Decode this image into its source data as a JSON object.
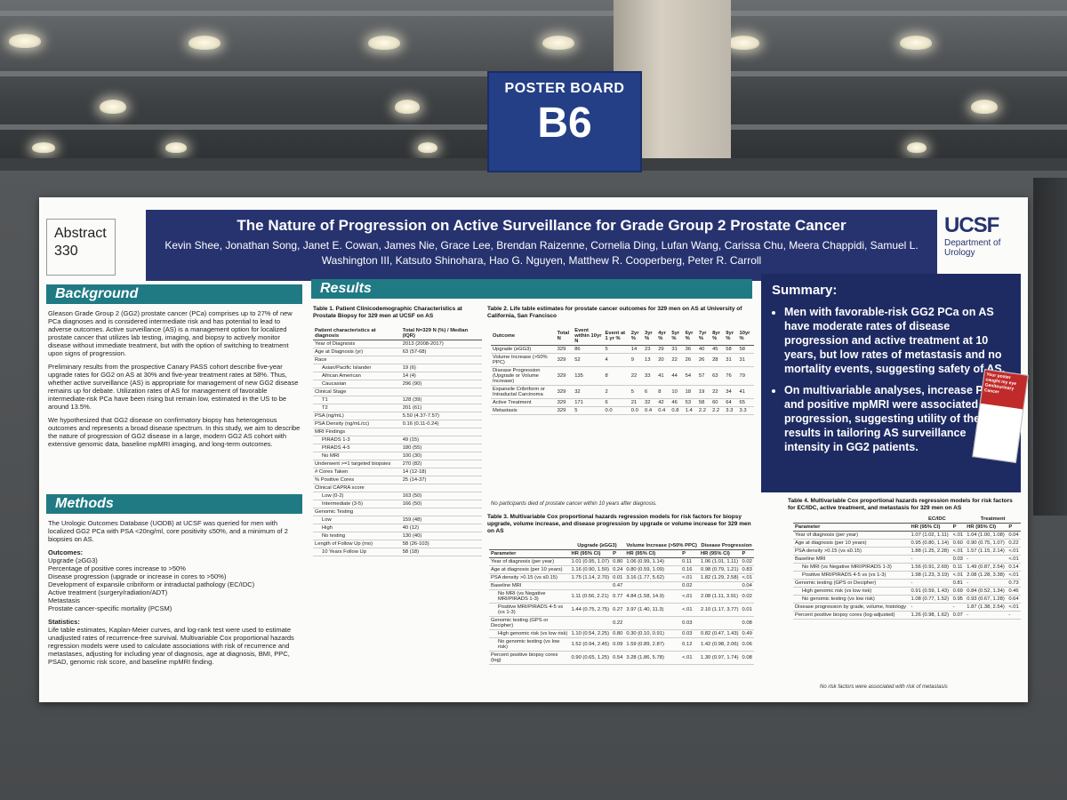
{
  "sign": {
    "line1": "POSTER BOARD",
    "line2": "B6"
  },
  "abstract": {
    "label": "Abstract",
    "number": "330"
  },
  "title": "The Nature of Progression on Active Surveillance for Grade Group 2 Prostate Cancer",
  "authors": "Kevin Shee, Jonathan Song, Janet E. Cowan, James Nie, Grace Lee, Brendan Raizenne, Cornelia Ding, Lufan Wang, Carissa Chu, Meera Chappidi, Samuel L. Washington III, Katsuto Shinohara, Hao G. Nguyen, Matthew R. Cooperberg, Peter R. Carroll",
  "logo": {
    "name": "UCSF",
    "dept": "Department of Urology"
  },
  "background": {
    "heading": "Background",
    "p1": "Gleason Grade Group 2 (GG2) prostate cancer (PCa) comprises up to 27% of new PCa diagnoses and is considered intermediate risk and has potential to lead to adverse outcomes. Active surveillance (AS) is a management option for localized prostate cancer that utilizes lab testing, imaging, and biopsy to actively monitor disease without immediate treatment, but with the option of switching to treatment upon signs of progression.",
    "p2": "Preliminary results from the prospective Canary PASS cohort describe five-year upgrade rates for GG2 on AS at 30% and five-year treatment rates at 58%. Thus, whether active surveillance (AS) is appropriate for management of new GG2 disease remains up for debate. Utilization rates of AS for management of favorable intermediate-risk PCa have been rising but remain low, estimated in the US to be around 13.5%.",
    "p3": "We hypothesized that GG2 disease on confirmatory biopsy has heterogenous outcomes and represents a broad disease spectrum. In this study, we aim to describe the nature of progression of GG2 disease in a large, modern GG2 AS cohort with extensive genomic data, baseline mpMRI imaging, and long-term outcomes."
  },
  "methods": {
    "heading": "Methods",
    "p1": "The Urologic Outcomes Database (UODB) at UCSF was queried for men with localized GG2 PCa with PSA <20ng/ml, core positivity ≤50%, and a minimum of 2 biopsies on AS.",
    "outcomes_label": "Outcomes:",
    "outcomes": [
      "Upgrade (≥GG3)",
      "Percentage of positive cores increase to >50%",
      "Disease progression (upgrade or increase in cores to >50%)",
      "Development of expansile cribriform or intraductal pathology (EC/IDC)",
      "Active treatment (surgery/radiation/ADT)",
      "Metastasis",
      "Prostate cancer-specific mortality (PCSM)"
    ],
    "stats_label": "Statistics:",
    "stats": "Life table estimates, Kaplan-Meier curves, and log-rank test were used to estimate unadjusted rates of recurrence-free survival. Multivariable Cox proportional hazards regression models were used to calculate associations with risk of recurrence and metastases, adjusting for including year of diagnosis, age at diagnosis, BMI, PPC, PSAD, genomic risk score, and baseline mpMRI finding."
  },
  "results": {
    "heading": "Results"
  },
  "table1": {
    "title": "Table 1. Patient Clinicodemographic Characteristics at Prostate Biopsy for 329 men at UCSF on AS",
    "head": [
      "Patient characteristics at diagnosis",
      "Total N=329 N (%) / Median (IQR)"
    ],
    "rows": [
      [
        "Year of Diagnosis",
        "2013 (2008-2017)"
      ],
      [
        "Age at Diagnosis (yr)",
        "63 (57-68)"
      ],
      [
        "Race",
        ""
      ],
      [
        "Asian/Pacific Islander",
        "19 (6)"
      ],
      [
        "African American",
        "14 (4)"
      ],
      [
        "Caucasian",
        "296 (90)"
      ],
      [
        "Clinical Stage",
        ""
      ],
      [
        "T1",
        "128 (39)"
      ],
      [
        "T2",
        "201 (61)"
      ],
      [
        "PSA (ng/mL)",
        "5.50 (4.37-7.57)"
      ],
      [
        "PSA Density (ng/mL/cc)",
        "0.16 (0.11-0.24)"
      ],
      [
        "MRI Findings",
        ""
      ],
      [
        "PIRADS 1-3",
        "49 (15)"
      ],
      [
        "PIRADS 4-5",
        "180 (55)"
      ],
      [
        "No MRI",
        "100 (30)"
      ],
      [
        "Underwent >=1 targeted biopsies",
        "270 (82)"
      ],
      [
        "# Cores Taken",
        "14 (12-18)"
      ],
      [
        "% Positive Cores",
        "25 (14-37)"
      ],
      [
        "Clinical CAPRA score",
        ""
      ],
      [
        "Low (0-2)",
        "163 (50)"
      ],
      [
        "Intermediate (3-5)",
        "166 (50)"
      ],
      [
        "Genomic Testing",
        ""
      ],
      [
        "Low",
        "159 (48)"
      ],
      [
        "High",
        "40 (12)"
      ],
      [
        "No testing",
        "130 (40)"
      ],
      [
        "Length of Follow Up (mo)",
        "58 (26-103)"
      ],
      [
        "10 Years Follow Up",
        "58 (18)"
      ]
    ]
  },
  "table2": {
    "title": "Table 2. Life table estimates for prostate cancer outcomes for 329 men on AS at University of California, San Francisco",
    "head": [
      "Outcome",
      "Total N",
      "Event within 10yr N",
      "Event at 1 yr %",
      "2yr %",
      "3yr %",
      "4yr %",
      "5yr %",
      "6yr %",
      "7yr %",
      "8yr %",
      "9yr %",
      "10yr %"
    ],
    "rows": [
      [
        "Upgrade (≥GG3)",
        "329",
        "86",
        "5",
        "14",
        "23",
        "29",
        "31",
        "36",
        "40",
        "45",
        "58",
        "58"
      ],
      [
        "Volume Increase (>50% PPC)",
        "329",
        "52",
        "4",
        "9",
        "13",
        "20",
        "22",
        "26",
        "26",
        "28",
        "31",
        "31"
      ],
      [
        "Disease Progression (Upgrade or Volume Increase)",
        "329",
        "135",
        "8",
        "22",
        "33",
        "41",
        "44",
        "54",
        "57",
        "63",
        "76",
        "79"
      ],
      [
        "Expansile Cribriform or Intraductal Carcinoma",
        "329",
        "32",
        "2",
        "5",
        "6",
        "8",
        "10",
        "18",
        "19",
        "22",
        "34",
        "41"
      ],
      [
        "Active Treatment",
        "329",
        "171",
        "6",
        "21",
        "32",
        "42",
        "46",
        "53",
        "58",
        "60",
        "64",
        "65"
      ],
      [
        "Metastasis",
        "329",
        "5",
        "0.0",
        "0.0",
        "0.4",
        "0.4",
        "0.8",
        "1.4",
        "2.2",
        "2.2",
        "3.3",
        "3.3"
      ]
    ],
    "note": "No participants died of prostate cancer within 10 years after diagnosis."
  },
  "table3": {
    "title": "Table 3. Multivariable Cox proportional hazards regression models for risk factors for biopsy upgrade, volume increase, and disease progression by upgrade or volume increase for 329 men on AS",
    "groups": [
      "Upgrade (≥GG3)",
      "Volume Increase (>50% PPC)",
      "Disease Progression"
    ],
    "head": [
      "Parameter",
      "HR (95% CI)",
      "P",
      "HR (95% CI)",
      "P",
      "HR (95% CI)",
      "P"
    ],
    "rows": [
      [
        "Year of diagnosis (per year)",
        "1.01 (0.95, 1.07)",
        "0.80",
        "1.06 (0.99, 1.14)",
        "0.11",
        "1.06 (1.01, 1.11)",
        "0.02"
      ],
      [
        "Age at diagnosis (per 10 years)",
        "1.16 (0.90, 1.50)",
        "0.24",
        "0.80 (0.59, 1.09)",
        "0.16",
        "0.98 (0.79, 1.21)",
        "0.83"
      ],
      [
        "PSA density >0.15 (vs ≤0.15)",
        "1.75 (1.14, 2.70)",
        "0.01",
        "3.16 (1.77, 5.62)",
        "<.01",
        "1.82 (1.29, 2.58)",
        "<.01"
      ],
      [
        "Baseline MRI",
        "",
        "0.47",
        "",
        "0.02",
        "",
        "0.04"
      ],
      [
        "No MRI (vs Negative MRI/PIRADS 1-3)",
        "1.11 (0.56, 2.21)",
        "0.77",
        "4.84 (1.58, 14.9)",
        "<.01",
        "2.08 (1.11, 3.91)",
        "0.02"
      ],
      [
        "Positive MRI/PIRADS 4-5 vs (vs 1-3)",
        "1.44 (0.75, 2.75)",
        "0.27",
        "3.97 (1.40, 11.3)",
        "<.01",
        "2.10 (1.17, 3.77)",
        "0.01"
      ],
      [
        "Genomic testing (GPS or Decipher)",
        "",
        "0.22",
        "",
        "0.03",
        "",
        "0.08"
      ],
      [
        "High genomic risk (vs low risk)",
        "1.10 (0.54, 2.25)",
        "0.80",
        "0.30 (0.10, 0.91)",
        "0.03",
        "0.82 (0.47, 1.43)",
        "0.49"
      ],
      [
        "No genomic testing (vs low risk)",
        "1.52 (0.94, 2.45)",
        "0.09",
        "1.59 (0.89, 2.87)",
        "0.12",
        "1.42 (0.98, 2.06)",
        "0.06"
      ],
      [
        "Percent positive biopsy cores (log)",
        "0.90 (0.65, 1.25)",
        "0.54",
        "3.28 (1.86, 5.78)",
        "<.01",
        "1.30 (0.97, 1.74)",
        "0.08"
      ]
    ]
  },
  "table4": {
    "title": "Table 4. Multivariable Cox proportional hazards regression models for risk factors for EC/IDC, active treatment, and metastasis for 329 men on AS",
    "groups": [
      "EC/IDC",
      "Treatment"
    ],
    "head": [
      "Parameter",
      "HR (95% CI)",
      "P",
      "HR (95% CI)",
      "P"
    ],
    "rows": [
      [
        "Year of diagnosis (per year)",
        "1.07 (1.02, 1.11)",
        "<.01",
        "1.04 (1.00, 1.08)",
        "0.04"
      ],
      [
        "Age at diagnosis (per 10 years)",
        "0.95 (0.80, 1.14)",
        "0.60",
        "0.90 (0.75, 1.07)",
        "0.22"
      ],
      [
        "PSA density >0.15 (vs ≤0.15)",
        "1.88 (1.25, 2.28)",
        "<.01",
        "1.57 (1.15, 2.14)",
        "<.01"
      ],
      [
        "Baseline MRI",
        "-",
        "0.03",
        "-",
        "<.01"
      ],
      [
        "No MRI (vs Negative MRI/PIRADS 1-3)",
        "1.56 (0.91, 2.69)",
        "0.11",
        "1.49 (0.87, 2.54)",
        "0.14"
      ],
      [
        "Positive MRI/PIRADS 4-5 vs (vs 1-3)",
        "1.98 (1.23, 3.19)",
        "<.01",
        "2.08 (1.28, 3.38)",
        "<.01"
      ],
      [
        "Genomic testing (GPS or Decipher)",
        "-",
        "0.81",
        "-",
        "0.73"
      ],
      [
        "High genomic risk (vs low risk)",
        "0.91 (0.59, 1.43)",
        "0.69",
        "0.84 (0.52, 1.34)",
        "0.46"
      ],
      [
        "No genomic testing (vs low risk)",
        "1.08 (0.77, 1.52)",
        "0.95",
        "0.93 (0.67, 1.28)",
        "0.64"
      ],
      [
        "Disease progression by grade, volume, histology",
        "-",
        "-",
        "1.87 (1.38, 2.54)",
        "<.01"
      ],
      [
        "Percent positive biopsy cores (log-adjusted)",
        "1.26 (0.98, 1.62)",
        "0.07",
        "-",
        "-"
      ]
    ],
    "note": "No risk factors were associated with risk of metastasis"
  },
  "summary": {
    "heading": "Summary:",
    "b1": "Men with favorable-risk GG2 PCa on AS have moderate rates of disease progression and active treatment at 10 years, but low rates of metastasis and no mortality events, suggesting safety of AS.",
    "b2": "On multivariable analyses, increase PSAD and positive mpMRI were associated with progression, suggesting utility of these results in tailoring AS surveillance intensity in GG2 patients."
  },
  "card": {
    "line1": "Your poster caught my eye",
    "line2": "Genitourinary Cancer"
  },
  "colors": {
    "navy": "#27336f",
    "teal": "#1f7a84",
    "summary_bg": "#1e2b63"
  }
}
